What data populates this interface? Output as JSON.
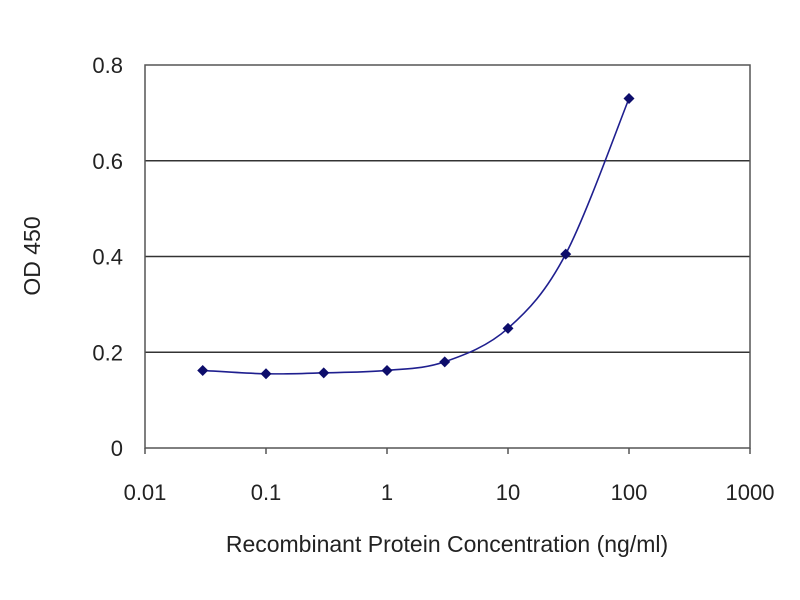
{
  "chart_data": {
    "type": "line",
    "title": "",
    "xlabel": "Recombinant Protein Concentration (ng/ml)",
    "ylabel": "OD 450",
    "x_scale": "log",
    "xlim": [
      0.01,
      1000
    ],
    "ylim": [
      0,
      0.8
    ],
    "x_ticks": [
      "0.01",
      "0.1",
      "1",
      "10",
      "100",
      "1000"
    ],
    "y_ticks": [
      "0",
      "0.2",
      "0.4",
      "0.6",
      "0.8"
    ],
    "grid": "horizontal",
    "series": [
      {
        "x": [
          0.03,
          0.1,
          0.3,
          1,
          3,
          10,
          30,
          100
        ],
        "y": [
          0.162,
          0.155,
          0.157,
          0.162,
          0.18,
          0.25,
          0.405,
          0.73
        ]
      }
    ],
    "colors": {
      "series": "#1f1f8f",
      "marker": "#0d0d6b",
      "gridline": "#333333",
      "frame": "#555555"
    }
  }
}
